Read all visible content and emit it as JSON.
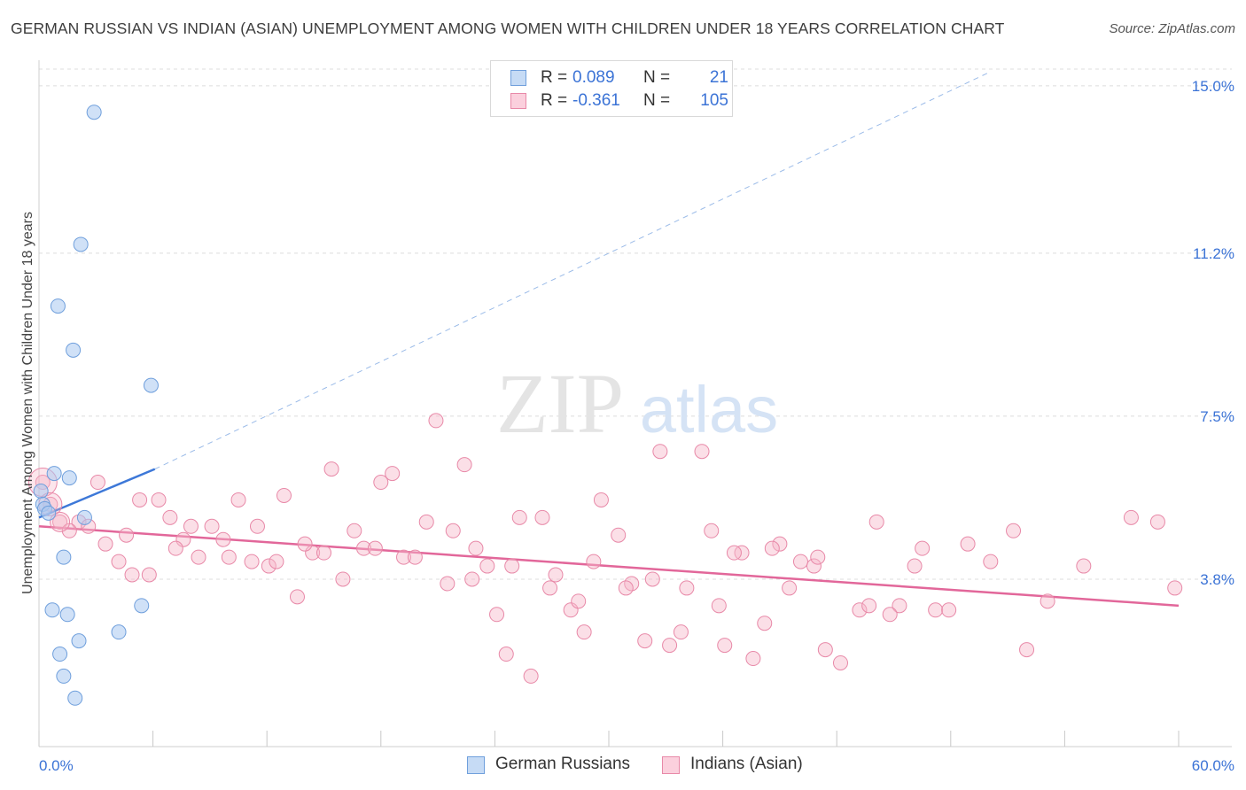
{
  "title": "GERMAN RUSSIAN VS INDIAN (ASIAN) UNEMPLOYMENT AMONG WOMEN WITH CHILDREN UNDER 18 YEARS CORRELATION CHART",
  "source": "Source: ZipAtlas.com",
  "watermark": {
    "zip": "ZIP",
    "atlas": "atlas"
  },
  "legend": {
    "rows": [
      {
        "r_label": "R =",
        "r_value": "0.089",
        "n_label": "N =",
        "n_value": "21"
      },
      {
        "r_label": "R =",
        "r_value": "-0.361",
        "n_label": "N =",
        "n_value": "105"
      }
    ]
  },
  "bottom_legend": {
    "series1": "German Russians",
    "series2": "Indians (Asian)"
  },
  "colors": {
    "blue_fill": "#a9c8f0",
    "blue_stroke": "#6f9fdc",
    "blue_line": "#3d78d8",
    "pink_fill": "#f6b7c9",
    "pink_stroke": "#e889a8",
    "pink_line": "#e2679a",
    "grid": "#dcdcdc",
    "tick_label": "#3b73d6"
  },
  "chart_data": {
    "type": "scatter",
    "title": "GERMAN RUSSIAN VS INDIAN (ASIAN) UNEMPLOYMENT AMONG WOMEN WITH CHILDREN UNDER 18 YEARS CORRELATION CHART",
    "xlabel": "",
    "ylabel": "Unemployment Among Women with Children Under 18 years",
    "xlim": [
      0,
      60
    ],
    "ylim": [
      0,
      15.5
    ],
    "x_tick_labels": [
      "0.0%",
      "60.0%"
    ],
    "y_ticks": [
      3.8,
      7.5,
      11.2,
      15.0
    ],
    "y_tick_labels": [
      "3.8%",
      "7.5%",
      "11.2%",
      "15.0%"
    ],
    "grid": true,
    "legend_position": "top-center",
    "series": [
      {
        "name": "German Russians",
        "r": 0.089,
        "n": 21,
        "trend": {
          "x": [
            0,
            6.1
          ],
          "y": [
            5.2,
            6.3
          ],
          "dashed_extension_to": [
            50,
            15.3
          ]
        },
        "points": [
          [
            2.9,
            14.4
          ],
          [
            2.2,
            11.4
          ],
          [
            1.0,
            10.0
          ],
          [
            1.8,
            9.0
          ],
          [
            5.9,
            8.2
          ],
          [
            0.8,
            6.2
          ],
          [
            1.6,
            6.1
          ],
          [
            0.1,
            5.8
          ],
          [
            0.2,
            5.5
          ],
          [
            0.3,
            5.4
          ],
          [
            0.5,
            5.3
          ],
          [
            2.4,
            5.2
          ],
          [
            1.3,
            4.3
          ],
          [
            0.7,
            3.1
          ],
          [
            1.5,
            3.0
          ],
          [
            5.4,
            3.2
          ],
          [
            4.2,
            2.6
          ],
          [
            2.1,
            2.4
          ],
          [
            1.1,
            2.1
          ],
          [
            1.3,
            1.6
          ],
          [
            1.9,
            1.1
          ]
        ]
      },
      {
        "name": "Indians (Asian)",
        "r": -0.361,
        "n": 105,
        "trend": {
          "x": [
            0,
            60
          ],
          "y": [
            5.0,
            3.2
          ]
        },
        "points": [
          [
            0.2,
            6.0
          ],
          [
            0.6,
            5.5
          ],
          [
            1.1,
            5.1
          ],
          [
            2.1,
            5.1
          ],
          [
            2.6,
            5.0
          ],
          [
            3.1,
            6.0
          ],
          [
            4.2,
            4.2
          ],
          [
            5.3,
            5.6
          ],
          [
            4.6,
            4.8
          ],
          [
            5.8,
            3.9
          ],
          [
            6.3,
            5.6
          ],
          [
            6.9,
            5.2
          ],
          [
            7.6,
            4.7
          ],
          [
            8.4,
            4.3
          ],
          [
            9.1,
            5.0
          ],
          [
            9.7,
            4.7
          ],
          [
            10.5,
            5.6
          ],
          [
            11.2,
            4.2
          ],
          [
            12.1,
            4.1
          ],
          [
            12.9,
            5.7
          ],
          [
            13.6,
            3.4
          ],
          [
            14.4,
            4.4
          ],
          [
            15.4,
            6.3
          ],
          [
            16.0,
            3.8
          ],
          [
            16.6,
            4.9
          ],
          [
            17.1,
            4.5
          ],
          [
            18.0,
            6.0
          ],
          [
            18.6,
            6.2
          ],
          [
            19.2,
            4.3
          ],
          [
            20.4,
            5.1
          ],
          [
            20.9,
            7.4
          ],
          [
            21.5,
            3.7
          ],
          [
            22.4,
            6.4
          ],
          [
            23.0,
            4.5
          ],
          [
            23.6,
            4.1
          ],
          [
            24.1,
            3.0
          ],
          [
            24.6,
            2.1
          ],
          [
            25.3,
            5.2
          ],
          [
            25.9,
            1.6
          ],
          [
            26.5,
            5.2
          ],
          [
            27.2,
            3.9
          ],
          [
            28.0,
            3.1
          ],
          [
            28.7,
            2.6
          ],
          [
            29.6,
            5.6
          ],
          [
            30.5,
            4.8
          ],
          [
            31.2,
            3.7
          ],
          [
            31.9,
            2.4
          ],
          [
            32.7,
            6.7
          ],
          [
            33.2,
            2.3
          ],
          [
            34.1,
            3.6
          ],
          [
            34.9,
            6.7
          ],
          [
            35.4,
            4.9
          ],
          [
            36.1,
            2.3
          ],
          [
            37.0,
            4.4
          ],
          [
            37.6,
            2.0
          ],
          [
            38.2,
            2.8
          ],
          [
            39.0,
            4.6
          ],
          [
            40.1,
            4.2
          ],
          [
            40.8,
            4.1
          ],
          [
            41.4,
            2.2
          ],
          [
            42.2,
            1.9
          ],
          [
            43.2,
            3.1
          ],
          [
            44.1,
            5.1
          ],
          [
            45.3,
            3.2
          ],
          [
            46.5,
            4.5
          ],
          [
            47.2,
            3.1
          ],
          [
            48.9,
            4.6
          ],
          [
            52.0,
            2.2
          ],
          [
            53.1,
            3.3
          ],
          [
            57.5,
            5.2
          ],
          [
            58.9,
            5.1
          ],
          [
            59.8,
            3.6
          ],
          [
            1.6,
            4.9
          ],
          [
            3.5,
            4.6
          ],
          [
            4.9,
            3.9
          ],
          [
            7.2,
            4.5
          ],
          [
            8.0,
            5.0
          ],
          [
            10.0,
            4.3
          ],
          [
            11.5,
            5.0
          ],
          [
            12.5,
            4.2
          ],
          [
            14.0,
            4.6
          ],
          [
            15.0,
            4.4
          ],
          [
            17.7,
            4.5
          ],
          [
            19.8,
            4.3
          ],
          [
            21.8,
            4.9
          ],
          [
            22.8,
            3.8
          ],
          [
            24.9,
            4.1
          ],
          [
            26.9,
            3.6
          ],
          [
            28.4,
            3.3
          ],
          [
            29.2,
            4.2
          ],
          [
            30.9,
            3.6
          ],
          [
            32.3,
            3.8
          ],
          [
            33.8,
            2.6
          ],
          [
            35.8,
            3.2
          ],
          [
            36.6,
            4.4
          ],
          [
            38.6,
            4.5
          ],
          [
            39.5,
            3.6
          ],
          [
            41.0,
            4.3
          ],
          [
            43.7,
            3.2
          ],
          [
            44.8,
            3.0
          ],
          [
            46.1,
            4.1
          ],
          [
            47.9,
            3.1
          ],
          [
            50.1,
            4.2
          ],
          [
            51.3,
            4.9
          ],
          [
            55.0,
            4.1
          ]
        ]
      }
    ]
  }
}
